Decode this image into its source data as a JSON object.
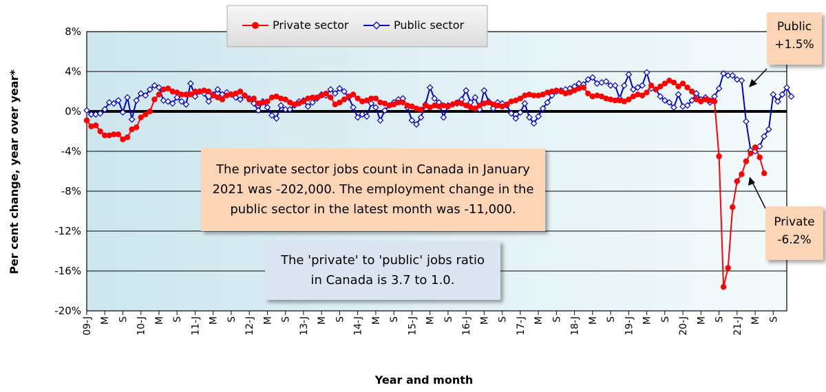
{
  "chart_data": {
    "type": "line",
    "xlabel": "Year and month",
    "ylabel": "Per cent change, year over year*",
    "ylim": [
      -20,
      8
    ],
    "yticks": [
      "8%",
      "4%",
      "0%",
      "-4%",
      "-8%",
      "-12%",
      "-16%",
      "-20%"
    ],
    "xtick_labels": [
      "09-J",
      "M",
      "S",
      "10-J",
      "M",
      "S",
      "11-J",
      "M",
      "S",
      "12-J",
      "M",
      "S",
      "13-J",
      "M",
      "S",
      "14-J",
      "M",
      "S",
      "15-J",
      "M",
      "S",
      "16-J",
      "M",
      "S",
      "17-J",
      "M",
      "S",
      "18-J",
      "M",
      "S",
      "19-J",
      "M",
      "S",
      "20-J",
      "M",
      "S",
      "21-J",
      "M",
      "S"
    ],
    "grid": true,
    "legend_position": "top",
    "series": [
      {
        "name": "Private sector",
        "color": "#ff0000",
        "marker": "circle",
        "values": [
          -0.9,
          -1.5,
          -1.4,
          -2.0,
          -2.4,
          -2.4,
          -2.3,
          -2.3,
          -2.8,
          -2.6,
          -1.8,
          -1.6,
          -0.6,
          -0.3,
          0.0,
          1.2,
          1.7,
          2.2,
          2.3,
          2.0,
          1.9,
          1.7,
          1.7,
          1.7,
          2.0,
          2.0,
          2.1,
          2.0,
          1.6,
          1.4,
          1.2,
          1.6,
          1.7,
          1.8,
          2.0,
          1.6,
          1.2,
          1.3,
          0.8,
          0.9,
          1.0,
          1.4,
          1.5,
          1.3,
          1.2,
          0.9,
          0.7,
          0.8,
          1.0,
          1.3,
          1.4,
          1.4,
          1.6,
          1.8,
          1.4,
          0.7,
          0.9,
          1.2,
          1.5,
          1.7,
          1.3,
          1.0,
          1.1,
          1.3,
          1.3,
          0.9,
          0.8,
          0.6,
          0.7,
          0.9,
          0.9,
          0.6,
          0.5,
          0.3,
          0.2,
          0.6,
          0.4,
          0.6,
          0.5,
          0.6,
          0.5,
          0.7,
          0.9,
          0.8,
          0.6,
          0.4,
          0.3,
          0.6,
          0.8,
          0.9,
          0.7,
          0.6,
          0.5,
          0.7,
          1.0,
          1.1,
          1.3,
          1.6,
          1.7,
          1.6,
          1.6,
          1.7,
          1.9,
          2.0,
          2.1,
          2.0,
          1.8,
          1.9,
          2.1,
          2.3,
          2.4,
          1.8,
          1.5,
          1.6,
          1.5,
          1.3,
          1.2,
          1.1,
          1.1,
          1.0,
          1.2,
          1.5,
          1.7,
          1.6,
          1.9,
          2.6,
          2.2,
          2.5,
          2.8,
          3.1,
          2.9,
          2.5,
          2.8,
          2.4,
          2.0,
          1.2,
          1.0,
          1.2,
          1.1,
          1.0,
          -4.5,
          -17.6,
          -15.7,
          -9.6,
          -7.0,
          -6.3,
          -5.0,
          -4.2,
          -3.6,
          -4.6,
          -6.2
        ]
      },
      {
        "name": "Public sector",
        "color": "#0000cc",
        "marker": "diamond",
        "values": [
          0.1,
          -0.3,
          -0.3,
          -0.2,
          0.2,
          0.9,
          0.8,
          1.1,
          -0.1,
          1.4,
          -0.8,
          1.1,
          1.8,
          1.6,
          2.2,
          2.6,
          2.4,
          1.1,
          1.0,
          0.8,
          1.4,
          1.0,
          0.7,
          2.8,
          1.5,
          2.0,
          1.8,
          1.0,
          1.7,
          2.2,
          1.7,
          1.9,
          1.7,
          1.4,
          1.2,
          1.6,
          1.3,
          0.8,
          0.1,
          1.0,
          0.4,
          -0.4,
          -0.7,
          0.6,
          0.2,
          0.2,
          0.6,
          1.0,
          1.1,
          0.5,
          0.9,
          1.3,
          1.7,
          1.6,
          2.2,
          1.8,
          2.3,
          2.0,
          1.4,
          0.4,
          -0.6,
          -0.3,
          -0.5,
          0.8,
          0.4,
          -0.9,
          0.1,
          0.6,
          0.9,
          1.2,
          1.3,
          0.4,
          -0.9,
          -1.3,
          -0.6,
          0.7,
          2.4,
          1.3,
          0.9,
          -0.6,
          0.6,
          0.7,
          0.8,
          1.2,
          2.1,
          0.9,
          1.4,
          0.2,
          2.1,
          1.0,
          0.3,
          0.9,
          0.8,
          0.6,
          -0.2,
          -0.7,
          -0.1,
          0.8,
          -0.6,
          -1.2,
          -0.5,
          0.3,
          0.9,
          1.6,
          2.0,
          2.1,
          2.2,
          2.3,
          2.5,
          2.8,
          2.7,
          3.2,
          3.4,
          2.8,
          2.9,
          3.0,
          2.6,
          2.6,
          1.3,
          2.6,
          3.7,
          2.2,
          2.4,
          2.6,
          3.9,
          2.3,
          2.2,
          1.5,
          1.1,
          0.9,
          0.4,
          1.7,
          0.5,
          0.6,
          1.1,
          1.8,
          1.2,
          1.4,
          0.9,
          1.5,
          2.3,
          3.8,
          3.6,
          3.6,
          3.2,
          3.1,
          -1.0,
          -3.9,
          -4.0,
          -3.5,
          -2.5,
          -1.8,
          1.7,
          1.0,
          1.7,
          2.4,
          1.5
        ]
      }
    ]
  },
  "annotations": {
    "main_text": "The private sector jobs count in Canada in January 2021 was -202,000. The employment change in the public sector in the latest month was -11,000.",
    "ratio_text": "The 'private' to 'public' jobs ratio in Canada is 3.7 to 1.0.",
    "public_label": "Public",
    "public_value": "+1.5%",
    "private_label": "Private",
    "private_value": "-6.2%"
  }
}
